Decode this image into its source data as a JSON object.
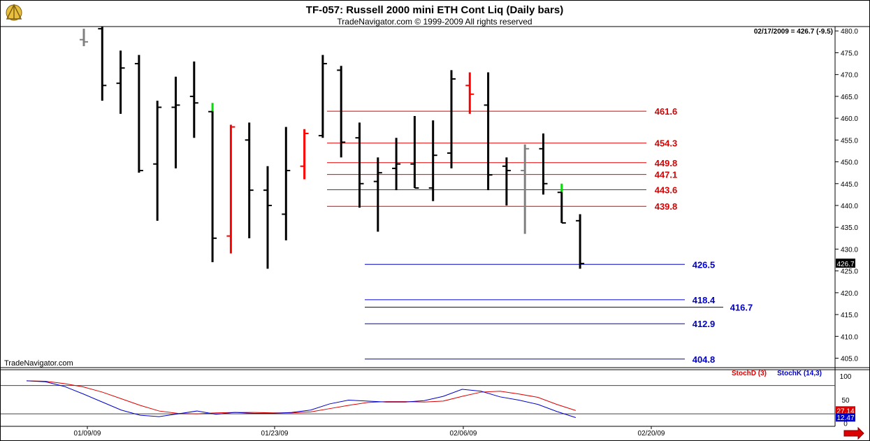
{
  "header": {
    "title": "TF-057:  Russell 2000 mini ETH Cont Liq  (Daily bars)",
    "copyright": "TradeNavigator.com © 1999-2009 All rights reserved",
    "info": "02/17/2009 = 426.7 (-9.5)",
    "watermark": "TradeNavigator.com",
    "logo_icon": "sextant-icon"
  },
  "colors": {
    "bar_black": "#000000",
    "bar_red": "#ff0000",
    "bar_gray": "#808080",
    "bar_green": "#00dd00",
    "fib_red": "#dd0000",
    "fib_blue": "#0000cc",
    "stochD": "#dd0000",
    "stochK": "#0000cc",
    "price_tag_bg": "#000000",
    "stochD_tag_bg": "#dd0000",
    "stochK_tag_bg": "#0000cc"
  },
  "chart_data": [
    {
      "type": "ohlc",
      "price_axis": {
        "ylim": [
          403,
          481
        ],
        "ticks": [
          "405.0",
          "410.0",
          "415.0",
          "420.0",
          "425.0",
          "430.0",
          "435.0",
          "440.0",
          "445.0",
          "450.0",
          "455.0",
          "460.0",
          "465.0",
          "470.0",
          "475.0",
          "480.0"
        ]
      },
      "last_price_label": "426.7",
      "x_ticks": [
        "01/09/09",
        "01/23/09",
        "02/06/09",
        "02/20/09"
      ],
      "bars": [
        {
          "o": 478.0,
          "h": 480.5,
          "l": 476.5,
          "c": 477.5,
          "color": "gray"
        },
        {
          "o": 480.5,
          "h": 481.0,
          "l": 464.0,
          "c": 467.5,
          "color": "black"
        },
        {
          "o": 468.0,
          "h": 475.5,
          "l": 461.0,
          "c": 471.5,
          "color": "black"
        },
        {
          "o": 472.5,
          "h": 474.5,
          "l": 447.5,
          "c": 448.0,
          "color": "black"
        },
        {
          "o": 449.5,
          "h": 464.0,
          "l": 436.5,
          "c": 462.5,
          "color": "black"
        },
        {
          "o": 462.5,
          "h": 469.5,
          "l": 448.5,
          "c": 463.0,
          "color": "black"
        },
        {
          "o": 465.0,
          "h": 473.0,
          "l": 455.5,
          "c": 463.5,
          "color": "black"
        },
        {
          "o": 461.5,
          "h": 463.5,
          "l": 427.0,
          "c": 432.5,
          "color": "green_black"
        },
        {
          "o": 433.0,
          "h": 458.5,
          "l": 429.0,
          "c": 458.0,
          "color": "red"
        },
        {
          "o": 455.0,
          "h": 459.0,
          "l": 432.5,
          "c": 443.5,
          "color": "black"
        },
        {
          "o": 443.5,
          "h": 449.0,
          "l": 425.5,
          "c": 440.0,
          "color": "black"
        },
        {
          "o": 438.0,
          "h": 458.0,
          "l": 432.0,
          "c": 448.0,
          "color": "black"
        },
        {
          "o": 449.0,
          "h": 457.5,
          "l": 446.0,
          "c": 456.5,
          "color": "red"
        },
        {
          "o": 456.0,
          "h": 474.5,
          "l": 455.5,
          "c": 472.5,
          "color": "black"
        },
        {
          "o": 471.0,
          "h": 472.0,
          "l": 451.0,
          "c": 454.5,
          "color": "black"
        },
        {
          "o": 455.5,
          "h": 459.0,
          "l": 439.5,
          "c": 445.0,
          "color": "black"
        },
        {
          "o": 445.5,
          "h": 451.0,
          "l": 434.0,
          "c": 447.5,
          "color": "black"
        },
        {
          "o": 448.5,
          "h": 455.5,
          "l": 443.5,
          "c": 449.5,
          "color": "black"
        },
        {
          "o": 449.5,
          "h": 460.5,
          "l": 444.0,
          "c": 444.0,
          "color": "black"
        },
        {
          "o": 444.0,
          "h": 459.5,
          "l": 441.0,
          "c": 451.5,
          "color": "black"
        },
        {
          "o": 452.0,
          "h": 471.0,
          "l": 448.5,
          "c": 469.0,
          "color": "black"
        },
        {
          "o": 467.5,
          "h": 470.5,
          "l": 461.0,
          "c": 465.5,
          "color": "red"
        },
        {
          "o": 463.0,
          "h": 470.5,
          "l": 443.5,
          "c": 447.0,
          "color": "black"
        },
        {
          "o": 449.0,
          "h": 451.0,
          "l": 440.0,
          "c": 448.0,
          "color": "black"
        },
        {
          "o": 448.0,
          "h": 454.0,
          "l": 433.5,
          "c": 453.0,
          "color": "gray"
        },
        {
          "o": 453.0,
          "h": 456.5,
          "l": 442.5,
          "c": 445.0,
          "color": "black"
        },
        {
          "o": 443.0,
          "h": 445.0,
          "l": 436.0,
          "c": 436.0,
          "color": "green_black"
        },
        {
          "o": 436.5,
          "h": 438.0,
          "l": 425.5,
          "c": 426.7,
          "color": "black"
        }
      ],
      "fib_levels_red": [
        {
          "value": 461.6,
          "label": "461.6"
        },
        {
          "value": 454.3,
          "label": "454.3"
        },
        {
          "value": 449.8,
          "label": "449.8"
        },
        {
          "value": 447.1,
          "label": "447.1"
        },
        {
          "value": 443.6,
          "label": "443.6"
        },
        {
          "value": 439.8,
          "label": "439.8"
        }
      ],
      "fib_levels_blue": [
        {
          "value": 426.5,
          "label": "426.5"
        },
        {
          "value": 418.4,
          "label": "418.4"
        },
        {
          "value": 416.7,
          "label": "416.7"
        },
        {
          "value": 412.9,
          "label": "412.9"
        },
        {
          "value": 404.8,
          "label": "404.8"
        }
      ]
    },
    {
      "type": "line",
      "indicator_axis": {
        "ylim": [
          -5,
          112
        ],
        "ticks": [
          "100",
          "50",
          "0"
        ],
        "reference_levels": [
          80,
          20
        ]
      },
      "legend": [
        "StochD (3)",
        "StochK (14,3)"
      ],
      "series": [
        {
          "name": "StochD (3)",
          "values": [
            90,
            89,
            84,
            77,
            66,
            52,
            38,
            26,
            21,
            20,
            22,
            23,
            23,
            22,
            22,
            24,
            31,
            38,
            44,
            46,
            46,
            45,
            47,
            57,
            66,
            68,
            62,
            55,
            40,
            27
          ]
        },
        {
          "name": "StochK (14,3)",
          "values": [
            90,
            88,
            78,
            62,
            45,
            28,
            17,
            14,
            20,
            26,
            19,
            23,
            21,
            21,
            23,
            28,
            41,
            49,
            47,
            45,
            45,
            48,
            57,
            72,
            68,
            56,
            49,
            40,
            25,
            12
          ]
        }
      ],
      "stochD_last_label": "27.14",
      "stochK_last_label": "12.47"
    }
  ]
}
